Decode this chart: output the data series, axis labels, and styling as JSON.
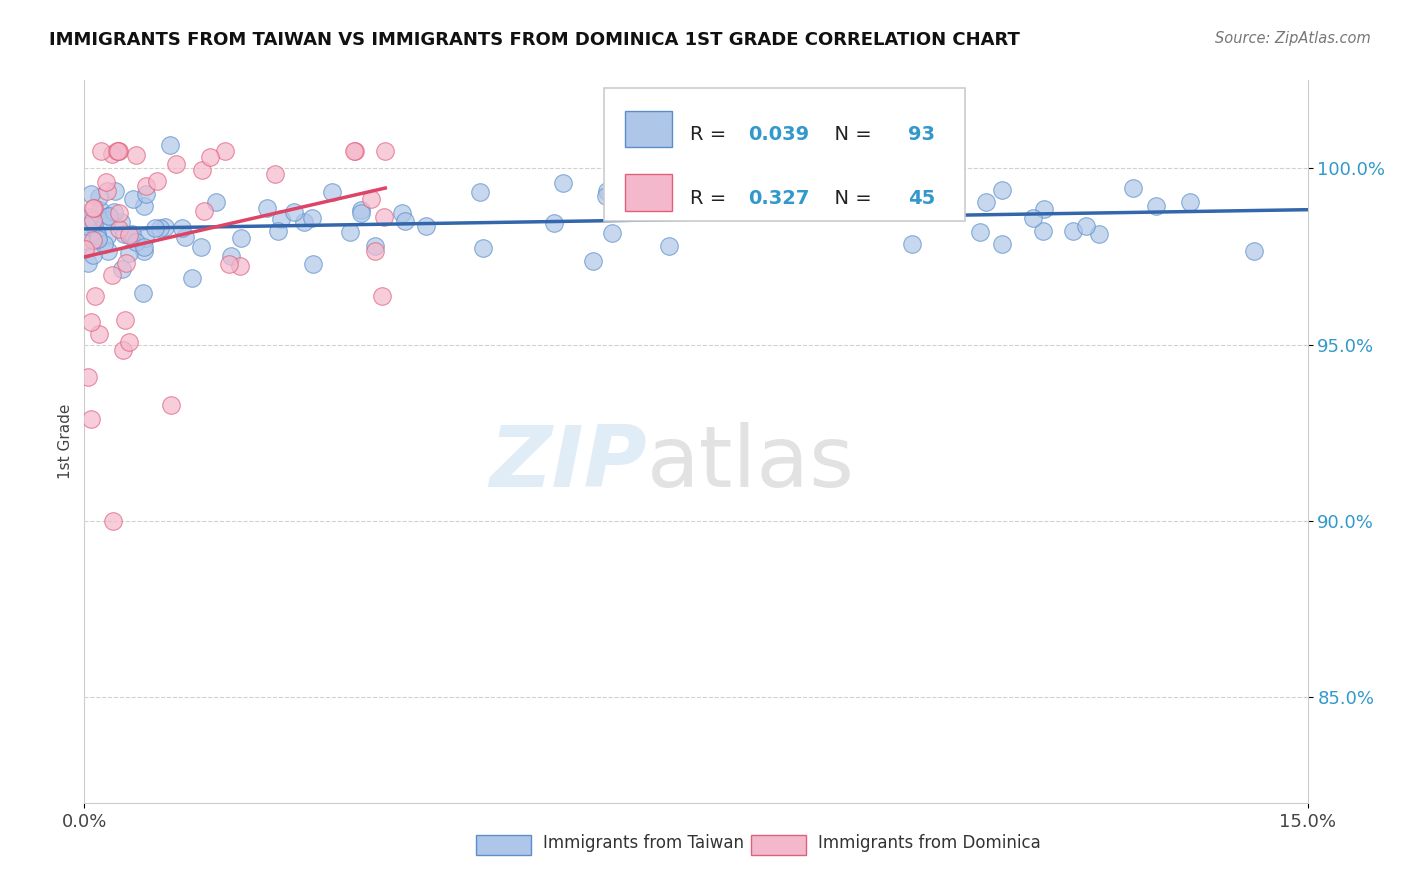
{
  "title": "IMMIGRANTS FROM TAIWAN VS IMMIGRANTS FROM DOMINICA 1ST GRADE CORRELATION CHART",
  "source_text": "Source: ZipAtlas.com",
  "ylabel": "1st Grade",
  "xlim": [
    0.0,
    15.0
  ],
  "ylim": [
    82.0,
    102.5
  ],
  "ytick_vals": [
    85.0,
    90.0,
    95.0,
    100.0
  ],
  "ytick_labels": [
    "85.0%",
    "90.0%",
    "95.0%",
    "100.0%"
  ],
  "taiwan_color": "#aec6e8",
  "dominica_color": "#f4b8cc",
  "taiwan_edge": "#5b8fcc",
  "dominica_edge": "#e0607a",
  "taiwan_line_color": "#3366aa",
  "dominica_line_color": "#dd4466",
  "R_taiwan": 0.039,
  "N_taiwan": 93,
  "R_dominica": 0.327,
  "N_dominica": 45,
  "watermark_zip": "ZIP",
  "watermark_atlas": "atlas",
  "background_color": "#ffffff",
  "grid_color": "#cccccc",
  "ytick_color": "#3399cc",
  "legend_label_taiwan": "Immigrants from Taiwan",
  "legend_label_dominica": "Immigrants from Dominica"
}
